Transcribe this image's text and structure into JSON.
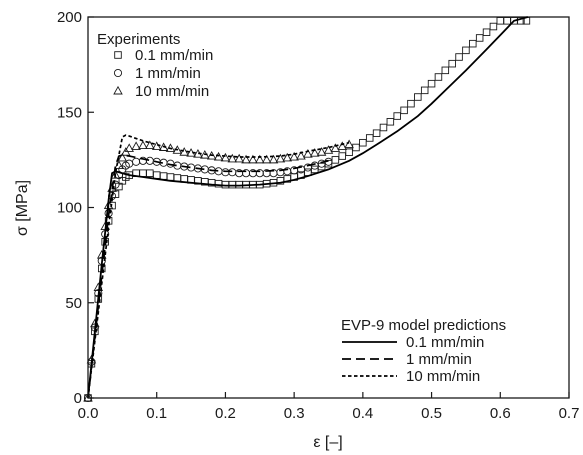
{
  "chart_data": {
    "type": "scatter",
    "xlabel": "ε [–]",
    "ylabel": "σ [MPa]",
    "xlim": [
      0.0,
      0.7
    ],
    "ylim": [
      0,
      200
    ],
    "xticks": [
      "0.0",
      "0.1",
      "0.2",
      "0.3",
      "0.4",
      "0.5",
      "0.6",
      "0.7"
    ],
    "yticks": [
      "0",
      "50",
      "100",
      "150",
      "200"
    ],
    "grid": false,
    "legend_experiments": {
      "title": "Experiments",
      "placement": "top-left",
      "entries": [
        {
          "label": "0.1 mm/min",
          "marker": "square"
        },
        {
          "label": "1 mm/min",
          "marker": "circle"
        },
        {
          "label": "10 mm/min",
          "marker": "triangle"
        }
      ]
    },
    "legend_model": {
      "title": "EVP-9 model predictions",
      "placement": "bottom-right",
      "entries": [
        {
          "label": "0.1 mm/min",
          "line": "solid"
        },
        {
          "label": "1 mm/min",
          "line": "dashed"
        },
        {
          "label": "10 mm/min",
          "line": "dotted"
        }
      ]
    },
    "series": [
      {
        "label": "0.1 mm/min",
        "kind": "experiment",
        "marker": "square",
        "x": [
          0.0,
          0.005,
          0.01,
          0.015,
          0.02,
          0.025,
          0.03,
          0.035,
          0.04,
          0.045,
          0.05,
          0.055,
          0.06,
          0.07,
          0.08,
          0.09,
          0.1,
          0.11,
          0.12,
          0.13,
          0.14,
          0.15,
          0.16,
          0.17,
          0.18,
          0.19,
          0.2,
          0.21,
          0.22,
          0.23,
          0.24,
          0.25,
          0.26,
          0.27,
          0.28,
          0.29,
          0.3,
          0.31,
          0.32,
          0.33,
          0.34,
          0.35,
          0.36,
          0.37,
          0.38,
          0.39,
          0.4,
          0.41,
          0.42,
          0.43,
          0.44,
          0.45,
          0.46,
          0.47,
          0.48,
          0.49,
          0.5,
          0.51,
          0.52,
          0.53,
          0.54,
          0.55,
          0.56,
          0.57,
          0.58,
          0.59,
          0.6,
          0.61,
          0.62,
          0.63,
          0.638
        ],
        "y": [
          0,
          18,
          35,
          52,
          68,
          82,
          93,
          101,
          107,
          111,
          114,
          116,
          117,
          118,
          118,
          118,
          117,
          116.5,
          116,
          115.5,
          115,
          114.5,
          114,
          113.5,
          113,
          112.5,
          112,
          112,
          112,
          112,
          112,
          112,
          112.5,
          113,
          114,
          115,
          116,
          117,
          118.5,
          120,
          121.5,
          123,
          125,
          127,
          129,
          131.5,
          134,
          136.5,
          139,
          142,
          145,
          148,
          151,
          154.5,
          158,
          161.5,
          165,
          168.5,
          172,
          175.5,
          179,
          182.5,
          186,
          189,
          192,
          195,
          198,
          198,
          198,
          198,
          198
        ]
      },
      {
        "label": "1 mm/min",
        "kind": "experiment",
        "marker": "circle",
        "x": [
          0.0,
          0.005,
          0.01,
          0.015,
          0.02,
          0.025,
          0.03,
          0.035,
          0.04,
          0.045,
          0.05,
          0.055,
          0.06,
          0.07,
          0.08,
          0.09,
          0.1,
          0.11,
          0.12,
          0.13,
          0.14,
          0.15,
          0.16,
          0.17,
          0.18,
          0.19,
          0.2,
          0.21,
          0.22,
          0.23,
          0.24,
          0.25,
          0.26,
          0.27,
          0.28,
          0.29,
          0.3,
          0.31,
          0.32,
          0.33,
          0.34,
          0.35
        ],
        "y": [
          0,
          19,
          37,
          55,
          72,
          86,
          97,
          106,
          112,
          117,
          120,
          122,
          123,
          124,
          124.5,
          124.5,
          124,
          123.5,
          123,
          122,
          121.5,
          121,
          120.5,
          120,
          119.5,
          119,
          118.5,
          118.5,
          118,
          118,
          118,
          118,
          118,
          118,
          118.5,
          119,
          119.5,
          120,
          121,
          122,
          123,
          124
        ]
      },
      {
        "label": "10 mm/min",
        "kind": "experiment",
        "marker": "triangle",
        "x": [
          0.0,
          0.005,
          0.01,
          0.015,
          0.02,
          0.025,
          0.03,
          0.035,
          0.04,
          0.045,
          0.05,
          0.055,
          0.06,
          0.07,
          0.08,
          0.09,
          0.1,
          0.11,
          0.12,
          0.13,
          0.14,
          0.15,
          0.16,
          0.17,
          0.18,
          0.19,
          0.2,
          0.21,
          0.22,
          0.23,
          0.24,
          0.25,
          0.26,
          0.27,
          0.28,
          0.29,
          0.3,
          0.31,
          0.32,
          0.33,
          0.34,
          0.35,
          0.36,
          0.37,
          0.38
        ],
        "y": [
          0,
          20,
          39,
          58,
          75,
          90,
          101,
          110,
          117,
          122,
          126,
          129,
          131,
          132,
          132.5,
          132.5,
          132,
          131.5,
          131,
          130,
          129,
          128.5,
          128,
          127.5,
          127,
          126.5,
          126,
          125.5,
          125.5,
          125,
          125,
          125,
          125,
          125,
          125.5,
          126,
          126.5,
          127,
          128,
          128.5,
          129,
          130,
          131,
          132,
          133
        ]
      },
      {
        "label": "0.1 mm/min",
        "kind": "model",
        "line": "solid",
        "x": [
          0.0,
          0.01,
          0.02,
          0.03,
          0.035,
          0.04,
          0.05,
          0.06,
          0.08,
          0.1,
          0.12,
          0.15,
          0.18,
          0.2,
          0.22,
          0.25,
          0.28,
          0.3,
          0.32,
          0.35,
          0.38,
          0.4,
          0.42,
          0.45,
          0.48,
          0.5,
          0.52,
          0.55,
          0.58,
          0.6,
          0.62,
          0.64
        ],
        "y": [
          0,
          35,
          70,
          104,
          118,
          119,
          118,
          117,
          116,
          115,
          114,
          113,
          112,
          111.5,
          111.5,
          112,
          113,
          114.5,
          116.5,
          120,
          124.5,
          128.5,
          133,
          140,
          148,
          154.5,
          161.5,
          172,
          183,
          190.5,
          198,
          200
        ]
      },
      {
        "label": "1 mm/min",
        "kind": "model",
        "line": "dashed",
        "x": [
          0.0,
          0.01,
          0.02,
          0.03,
          0.04,
          0.045,
          0.05,
          0.06,
          0.08,
          0.1,
          0.12,
          0.15,
          0.18,
          0.2,
          0.22,
          0.25,
          0.28,
          0.3,
          0.32,
          0.35
        ],
        "y": [
          0,
          32,
          64,
          96,
          122,
          127,
          127.5,
          127,
          125.5,
          124,
          122.5,
          121,
          119.5,
          119,
          119,
          119,
          119.5,
          120.5,
          122,
          124.5
        ]
      },
      {
        "label": "10 mm/min",
        "kind": "model",
        "line": "dotted",
        "x": [
          0.0,
          0.01,
          0.02,
          0.03,
          0.04,
          0.05,
          0.055,
          0.06,
          0.08,
          0.1,
          0.12,
          0.15,
          0.18,
          0.2,
          0.22,
          0.25,
          0.28,
          0.3,
          0.32,
          0.35,
          0.38
        ],
        "y": [
          0,
          30,
          60,
          90,
          118,
          137,
          138,
          137.5,
          135,
          133,
          131,
          129,
          127.5,
          127,
          126.5,
          126.5,
          127,
          128,
          129.5,
          131.5,
          134
        ]
      }
    ]
  }
}
